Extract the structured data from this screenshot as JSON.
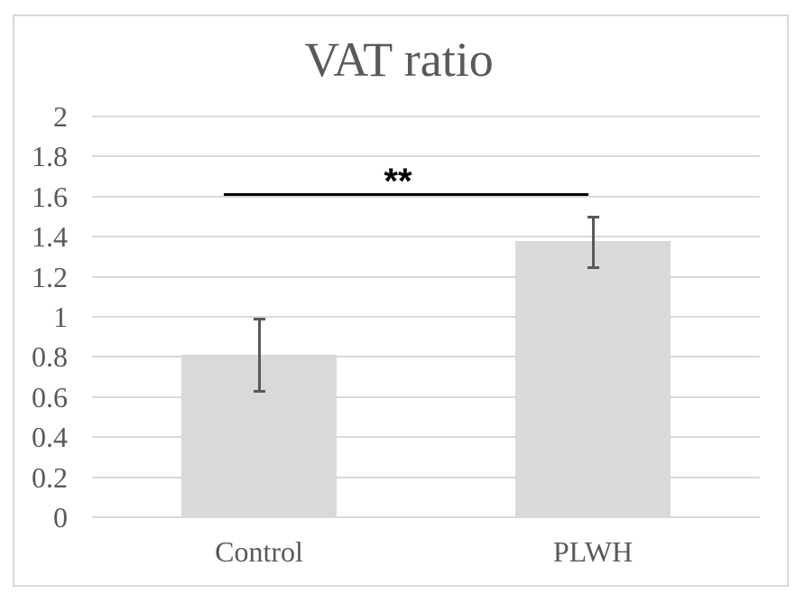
{
  "chart_data": {
    "type": "bar",
    "title": "VAT ratio",
    "categories": [
      "Control",
      "PLWH"
    ],
    "values": [
      0.81,
      1.38
    ],
    "error_bars": [
      {
        "low": 0.63,
        "high": 0.99
      },
      {
        "low": 1.25,
        "high": 1.5
      }
    ],
    "ylim": [
      0,
      2
    ],
    "yticks": [
      "2",
      "1.8",
      "1.6",
      "1.4",
      "1.2",
      "1",
      "0.8",
      "0.6",
      "0.4",
      "0.2",
      "0"
    ],
    "xlabel": "",
    "ylabel": "",
    "grid": true,
    "legend": "none",
    "significance": {
      "label": "**",
      "level": 1.61,
      "between": [
        "Control",
        "PLWH"
      ]
    },
    "colors": {
      "bar_fill": "#d9d9d9",
      "gridline": "#d9d9d9",
      "border": "#d9d9d9",
      "text": "#595959",
      "error_bar": "#595959",
      "significance_line": "#000000"
    }
  }
}
